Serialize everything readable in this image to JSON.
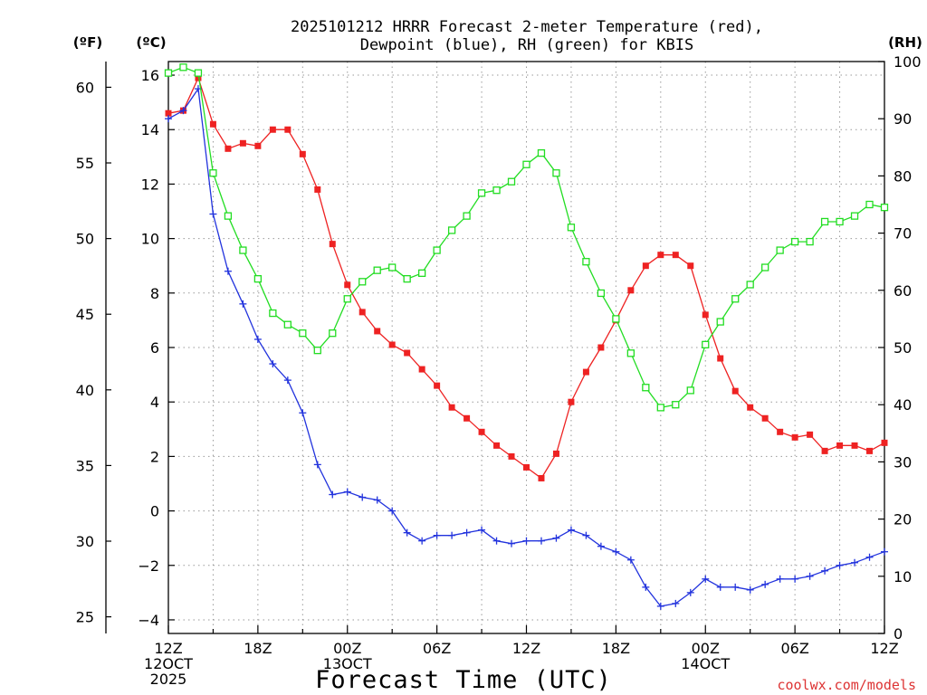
{
  "chart_data": {
    "type": "line",
    "title_line1": "2025101212 HRRR Forecast 2-meter Temperature (red),",
    "title_line2": "Dewpoint (blue), RH (green) for KBIS",
    "xlabel": "Forecast Time (UTC)",
    "credit": "coolwx.com/models",
    "unit_labels": {
      "fahrenheit": "(ºF)",
      "celsius": "(ºC)",
      "rh": "(RH)"
    },
    "x_range": [
      0,
      48
    ],
    "y_celsius_range": [
      -4.5,
      16.5
    ],
    "y_rh_range": [
      0,
      100
    ],
    "x_ticks": [
      {
        "x": 0,
        "lines": [
          "12Z",
          "12OCT",
          "2025"
        ]
      },
      {
        "x": 6,
        "lines": [
          "18Z"
        ]
      },
      {
        "x": 12,
        "lines": [
          "00Z",
          "13OCT"
        ]
      },
      {
        "x": 18,
        "lines": [
          "06Z"
        ]
      },
      {
        "x": 24,
        "lines": [
          "12Z"
        ]
      },
      {
        "x": 30,
        "lines": [
          "18Z"
        ]
      },
      {
        "x": 36,
        "lines": [
          "00Z",
          "14OCT"
        ]
      },
      {
        "x": 42,
        "lines": [
          "06Z"
        ]
      },
      {
        "x": 48,
        "lines": [
          "12Z"
        ]
      }
    ],
    "celsius_ticks": [
      "-4",
      "-2",
      "0",
      "2",
      "4",
      "6",
      "8",
      "10",
      "12",
      "14",
      "16"
    ],
    "fahrenheit_ticks": [
      "25",
      "30",
      "35",
      "40",
      "45",
      "50",
      "55",
      "60"
    ],
    "rh_ticks": [
      "0",
      "10",
      "20",
      "30",
      "40",
      "50",
      "60",
      "70",
      "80",
      "90",
      "100"
    ],
    "series": [
      {
        "name": "Temperature",
        "unit": "C",
        "color": "#ee2222",
        "marker": "filled-square",
        "x": [
          0,
          1,
          2,
          3,
          4,
          5,
          6,
          7,
          8,
          9,
          10,
          11,
          12,
          13,
          14,
          15,
          16,
          17,
          18,
          19,
          20,
          21,
          22,
          23,
          24,
          25,
          26,
          27,
          28,
          29,
          30,
          31,
          32,
          33,
          34,
          35,
          36,
          37,
          38,
          39,
          40,
          41,
          42,
          43,
          44,
          45,
          46,
          47,
          48
        ],
        "values": [
          14.6,
          14.7,
          15.9,
          14.2,
          13.3,
          13.5,
          13.4,
          14.0,
          14.0,
          13.1,
          11.8,
          9.8,
          8.3,
          7.3,
          6.6,
          6.1,
          5.8,
          5.2,
          4.6,
          3.8,
          3.4,
          2.9,
          2.4,
          2.0,
          1.6,
          1.2,
          2.1,
          4.0,
          5.1,
          6.0,
          7.0,
          8.1,
          9.0,
          9.4,
          9.4,
          9.0,
          7.2,
          5.6,
          4.4,
          3.8,
          3.4,
          2.9,
          2.7,
          2.8,
          2.2,
          2.4,
          2.4,
          2.2,
          2.5
        ]
      },
      {
        "name": "Dewpoint",
        "unit": "C",
        "color": "#2233dd",
        "marker": "plus",
        "x": [
          0,
          1,
          2,
          3,
          4,
          5,
          6,
          7,
          8,
          9,
          10,
          11,
          12,
          13,
          14,
          15,
          16,
          17,
          18,
          19,
          20,
          21,
          22,
          23,
          24,
          25,
          26,
          27,
          28,
          29,
          30,
          31,
          32,
          33,
          34,
          35,
          36,
          37,
          38,
          39,
          40,
          41,
          42,
          43,
          44,
          45,
          46,
          47,
          48
        ],
        "values": [
          14.4,
          14.7,
          15.5,
          10.9,
          8.8,
          7.6,
          6.3,
          5.4,
          4.8,
          3.6,
          1.7,
          0.6,
          0.7,
          0.5,
          0.4,
          -0.0,
          -0.8,
          -1.1,
          -0.9,
          -0.9,
          -0.8,
          -0.7,
          -1.1,
          -1.2,
          -1.1,
          -1.1,
          -1.0,
          -0.7,
          -0.9,
          -1.3,
          -1.5,
          -1.8,
          -2.8,
          -3.5,
          -3.4,
          -3.0,
          -2.5,
          -2.8,
          -2.8,
          -2.9,
          -2.7,
          -2.5,
          -2.5,
          -2.4,
          -2.2,
          -2.0,
          -1.9,
          -1.7,
          -1.5
        ]
      },
      {
        "name": "RH",
        "unit": "%",
        "color": "#22dd22",
        "marker": "hollow-square",
        "x": [
          0,
          1,
          2,
          3,
          4,
          5,
          6,
          7,
          8,
          9,
          10,
          11,
          12,
          13,
          14,
          15,
          16,
          17,
          18,
          19,
          20,
          21,
          22,
          23,
          24,
          25,
          26,
          27,
          28,
          29,
          30,
          31,
          32,
          33,
          34,
          35,
          36,
          37,
          38,
          39,
          40,
          41,
          42,
          43,
          44,
          45,
          46,
          47,
          48
        ],
        "values": [
          98,
          99,
          98,
          80.5,
          73,
          67,
          62,
          56,
          54,
          52.5,
          49.5,
          52.5,
          58.5,
          61.5,
          63.5,
          64,
          62,
          63,
          67,
          70.5,
          73,
          77,
          77.5,
          79,
          82,
          84,
          80.5,
          71,
          65,
          59.5,
          55,
          49,
          43,
          39.5,
          40,
          42.5,
          50.5,
          54.5,
          58.5,
          61,
          64,
          67,
          68.5,
          68.5,
          72,
          72,
          73,
          75,
          74.5
        ]
      }
    ]
  }
}
